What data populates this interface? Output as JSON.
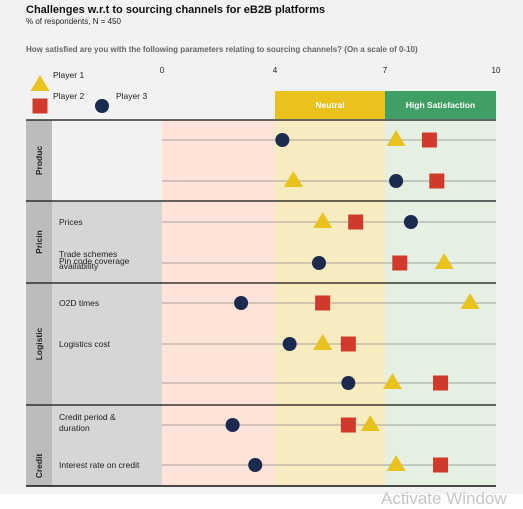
{
  "chart_data": {
    "type": "scatter",
    "title": "Challenges w.r.t to sourcing channels for eB2B platforms",
    "subtitle": "% of respondents, N = 450",
    "question": "How satisfied are you with the following parameters relating to sourcing channels? (On a scale of 0-10)",
    "xlim": [
      0,
      10
    ],
    "xticks": [
      "0",
      "4",
      "7",
      "10"
    ],
    "zones": [
      {
        "label": "",
        "from": 0,
        "to": 4,
        "color": "#fde3d8"
      },
      {
        "label": "Neutral",
        "from": 4,
        "to": 7,
        "color": "#f7ecc0",
        "header_color": "#e9c21d"
      },
      {
        "label": "High Satisfaction",
        "from": 7,
        "to": 10,
        "color": "#e5f0e3",
        "header_color": "#3f9f64"
      }
    ],
    "legend": [
      {
        "name": "Player 1",
        "shape": "triangle",
        "color": "#e9c21d"
      },
      {
        "name": "Player 2",
        "shape": "square",
        "color": "#d13a2a"
      },
      {
        "name": "Player 3",
        "shape": "circle",
        "color": "#1b2a4e"
      }
    ],
    "groups": [
      {
        "label": "Produc",
        "rows": [
          {
            "label": "",
            "player1": 7.3,
            "player2": 8.2,
            "player3": 4.2
          },
          {
            "label": "",
            "player1": 4.5,
            "player2": 8.4,
            "player3": 7.3
          }
        ]
      },
      {
        "label": "Pricin",
        "rows": [
          {
            "label": "Prices",
            "player1": 5.3,
            "player2": 6.2,
            "player3": 7.7
          },
          {
            "label": "Trade schemes\nPin code coverage\navailability",
            "player1": 8.6,
            "player2": 7.4,
            "player3": 5.2
          }
        ]
      },
      {
        "label": "Logistic",
        "rows": [
          {
            "label": "O2D times",
            "player1": 9.3,
            "player2": 5.3,
            "player3": 2.8
          },
          {
            "label": "Logistics cost",
            "player1": 5.3,
            "player2": 6.0,
            "player3": 4.4
          },
          {
            "label": "",
            "player1": 7.2,
            "player2": 8.5,
            "player3": 6.0
          }
        ]
      },
      {
        "label": "Credit",
        "rows": [
          {
            "label": "Credit period &\nduration",
            "player1": 6.6,
            "player2": 6.0,
            "player3": 2.5
          },
          {
            "label": "Interest rate on credit",
            "player1": 7.3,
            "player2": 8.5,
            "player3": 3.3
          }
        ]
      }
    ]
  },
  "watermark": "Activate Window"
}
